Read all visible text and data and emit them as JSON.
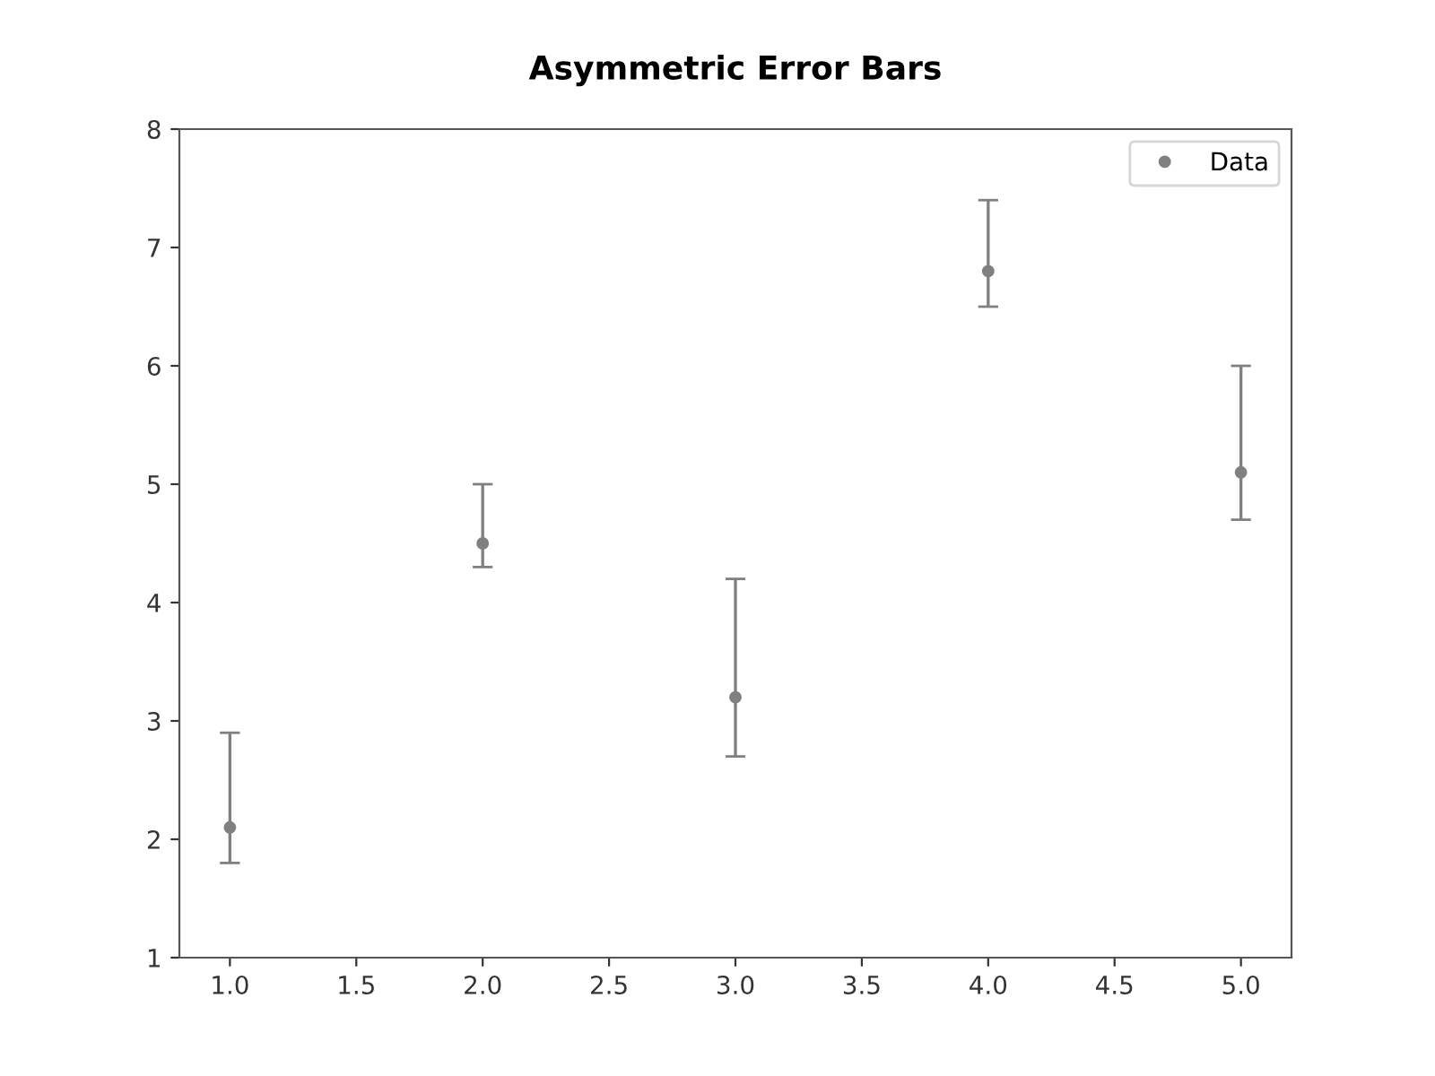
{
  "chart_data": {
    "type": "scatter",
    "title": "Asymmetric Error Bars",
    "x": [
      1,
      2,
      3,
      4,
      5
    ],
    "series": [
      {
        "name": "Data",
        "color": "#808080",
        "values": [
          2.1,
          4.5,
          3.2,
          6.8,
          5.1
        ],
        "errors": [
          [
            1.8,
            2.9
          ],
          [
            4.3,
            5.0
          ],
          [
            2.7,
            4.2
          ],
          [
            6.5,
            7.4
          ],
          [
            4.7,
            6.0
          ]
        ]
      }
    ],
    "xlim": [
      0.8,
      5.2
    ],
    "xticks": [
      {
        "value": 1,
        "label": "1.0"
      },
      {
        "value": 1.5,
        "label": "1.5"
      },
      {
        "value": 2,
        "label": "2.0"
      },
      {
        "value": 2.5,
        "label": "2.5"
      },
      {
        "value": 3,
        "label": "3.0"
      },
      {
        "value": 3.5,
        "label": "3.5"
      },
      {
        "value": 4,
        "label": "4.0"
      },
      {
        "value": 4.5,
        "label": "4.5"
      },
      {
        "value": 5,
        "label": "5.0"
      }
    ],
    "ylim": [
      1,
      8
    ],
    "yticks": [
      1,
      2,
      3,
      4,
      5,
      6,
      7,
      8
    ],
    "grid": false,
    "legend": "top right",
    "marker": "circle"
  }
}
